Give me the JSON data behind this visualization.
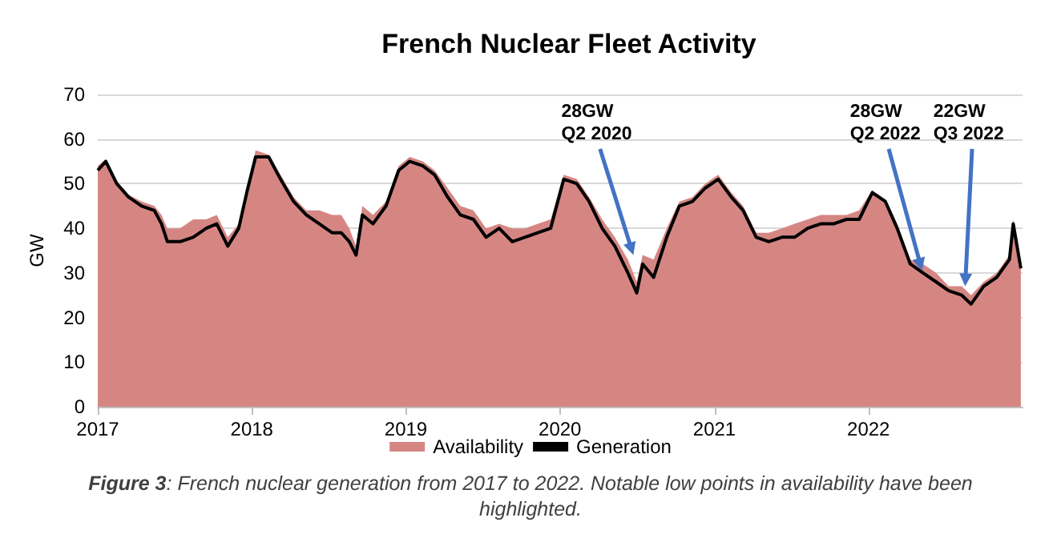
{
  "chart_data": {
    "type": "area",
    "title": "French Nuclear Fleet Activity",
    "ylabel": "GW",
    "x": [
      "2017-01-01",
      "2017-01-20",
      "2017-02-15",
      "2017-03-15",
      "2017-04-15",
      "2017-05-15",
      "2017-06-01",
      "2017-06-15",
      "2017-07-15",
      "2017-08-15",
      "2017-09-15",
      "2017-10-10",
      "2017-11-05",
      "2017-12-01",
      "2017-12-20",
      "2018-01-10",
      "2018-02-10",
      "2018-03-10",
      "2018-04-10",
      "2018-05-10",
      "2018-06-10",
      "2018-07-10",
      "2018-08-01",
      "2018-08-20",
      "2018-09-05",
      "2018-09-20",
      "2018-10-15",
      "2018-11-15",
      "2018-12-15",
      "2019-01-10",
      "2019-02-10",
      "2019-03-10",
      "2019-04-10",
      "2019-05-10",
      "2019-06-10",
      "2019-07-10",
      "2019-08-10",
      "2019-09-10",
      "2019-10-10",
      "2019-11-10",
      "2019-12-10",
      "2020-01-10",
      "2020-02-10",
      "2020-03-10",
      "2020-04-10",
      "2020-05-10",
      "2020-06-10",
      "2020-07-01",
      "2020-07-15",
      "2020-08-10",
      "2020-09-10",
      "2020-10-10",
      "2020-11-10",
      "2020-12-10",
      "2021-01-10",
      "2021-02-10",
      "2021-03-10",
      "2021-04-10",
      "2021-05-10",
      "2021-06-10",
      "2021-07-10",
      "2021-08-10",
      "2021-09-10",
      "2021-10-10",
      "2021-11-10",
      "2021-12-10",
      "2022-01-10",
      "2022-02-10",
      "2022-03-10",
      "2022-04-10",
      "2022-05-10",
      "2022-06-10",
      "2022-07-10",
      "2022-08-10",
      "2022-09-01",
      "2022-10-01",
      "2022-11-01",
      "2022-12-01",
      "2022-12-10",
      "2022-12-28"
    ],
    "series": [
      {
        "name": "Availability",
        "color": "#d58683",
        "values": [
          54,
          55.5,
          50.5,
          47.5,
          46,
          45,
          43,
          40,
          40,
          42,
          42,
          43,
          38,
          41,
          49,
          57.5,
          56.5,
          52,
          47,
          44,
          44,
          43,
          43,
          40,
          36,
          45,
          43,
          46,
          54,
          56,
          55,
          53,
          49,
          45,
          44,
          40,
          41,
          40,
          40,
          41,
          42,
          52,
          51,
          47,
          42,
          38,
          33,
          28,
          34,
          33,
          40,
          46,
          47,
          50,
          52,
          48,
          45,
          39,
          39,
          40,
          41,
          42,
          43,
          43,
          43,
          44,
          48.5,
          46.5,
          41,
          33,
          32,
          30,
          27,
          27,
          25,
          28,
          30,
          34,
          42,
          32
        ]
      },
      {
        "name": "Generation",
        "type": "line",
        "color": "#000000",
        "values": [
          53,
          55,
          50,
          47,
          45,
          44,
          41,
          37,
          37,
          38,
          40,
          41,
          36,
          40,
          48,
          56,
          56,
          51,
          46,
          43,
          41,
          39,
          39,
          37,
          34,
          43,
          41,
          45,
          53,
          55,
          54,
          52,
          47,
          43,
          42,
          38,
          40,
          37,
          38,
          39,
          40,
          51,
          50,
          46,
          40,
          36,
          30,
          25.5,
          32,
          29,
          38,
          45,
          46,
          49,
          51,
          47,
          44,
          38,
          37,
          38,
          38,
          40,
          41,
          41,
          42,
          42,
          48,
          46,
          40,
          32,
          30,
          28,
          26,
          25,
          23,
          27,
          29,
          33,
          41,
          31
        ]
      }
    ],
    "xlim": [
      "2017-01-01",
      "2023-01-01"
    ],
    "xticks": [
      "2017",
      "2018",
      "2019",
      "2020",
      "2021",
      "2022"
    ],
    "ylim": [
      0,
      70
    ],
    "yticks": [
      0,
      10,
      20,
      30,
      40,
      50,
      60,
      70
    ],
    "grid": "y",
    "legend": "bottom",
    "annotations": [
      {
        "text": "28GW\nQ2 2020",
        "x": "2020-06-23",
        "y": 34
      },
      {
        "text": "28GW\nQ2 2022",
        "x": "2022-05-08",
        "y": 30.5
      },
      {
        "text": "22GW\nQ3 2022",
        "x": "2022-08-18",
        "y": 27
      },
      "Figure 3: French nuclear generation from 2017 to 2022. Notable low points in availability have been highlighted."
    ]
  }
}
